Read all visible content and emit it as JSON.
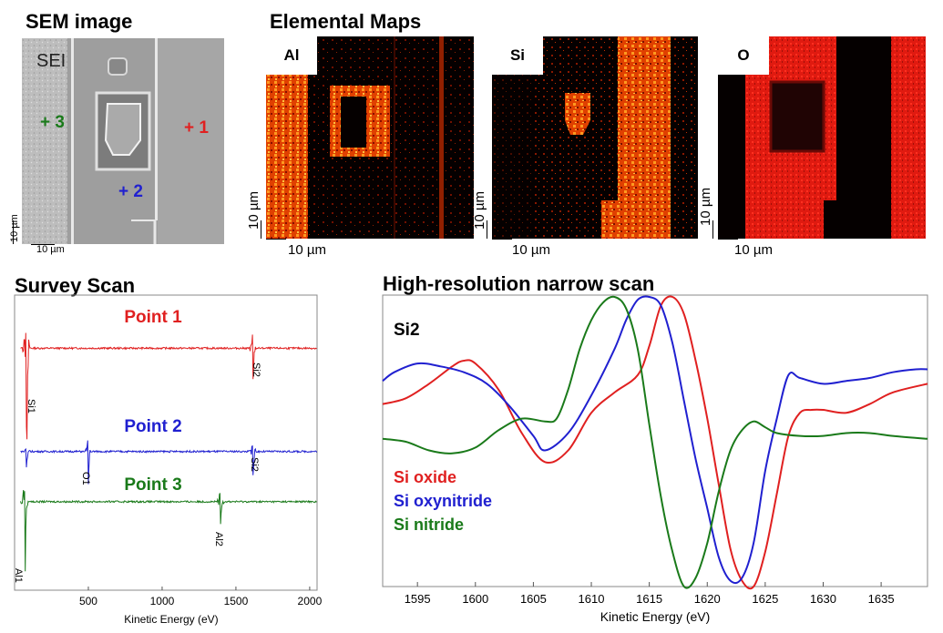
{
  "sem": {
    "title": "SEM image",
    "tag": "SEI",
    "points": [
      {
        "label": "+ 3",
        "color": "#1a7a1a"
      },
      {
        "label": "+ 2",
        "color": "#2020d0"
      },
      {
        "label": "+ 1",
        "color": "#e02020"
      }
    ],
    "scale_x": "10 µm",
    "scale_y": "10 µm"
  },
  "maps": {
    "title": "Elemental Maps",
    "panels": [
      {
        "label": "Al",
        "scale_x": "10 µm",
        "scale_y": "10 µm"
      },
      {
        "label": "Si",
        "scale_x": "10 µm",
        "scale_y": "10 µm"
      },
      {
        "label": "O",
        "scale_x": "10 µm",
        "scale_y": "10 µm"
      }
    ]
  },
  "survey": {
    "title": "Survey Scan",
    "point_labels": [
      {
        "text": "Point 1",
        "color": "#e02020"
      },
      {
        "text": "Point 2",
        "color": "#2020d0"
      },
      {
        "text": "Point 3",
        "color": "#1a7a1a"
      }
    ],
    "peak_labels": [
      "Si1",
      "Si2",
      "O1",
      "Si2",
      "Al2",
      "Al1"
    ]
  },
  "narrow": {
    "title": "High-resolution narrow scan",
    "panel_label": "Si2",
    "legend": [
      {
        "text": "Si oxide",
        "color": "#e02020"
      },
      {
        "text": "Si oxynitride",
        "color": "#2020d0"
      },
      {
        "text": "Si nitride",
        "color": "#1a7a1a"
      }
    ]
  },
  "chart_data": [
    {
      "type": "line",
      "title": "Survey Scan",
      "xlabel": "Kinetic Energy (eV)",
      "ylabel": "",
      "xlim": [
        0,
        2050
      ],
      "xticks": [
        500,
        1000,
        1500,
        2000
      ],
      "series": [
        {
          "name": "Point 1",
          "color": "#e02020",
          "baseline": 0.82,
          "peaks": [
            {
              "x": 80,
              "amp": -0.35,
              "label": "Si1"
            },
            {
              "x": 1615,
              "amp": -0.13,
              "label": "Si2"
            }
          ]
        },
        {
          "name": "Point 2",
          "color": "#2020d0",
          "baseline": 0.47,
          "peaks": [
            {
              "x": 80,
              "amp": -0.05,
              "label": ""
            },
            {
              "x": 500,
              "amp": -0.09,
              "label": "O1"
            },
            {
              "x": 1615,
              "amp": -0.08,
              "label": "Si2"
            }
          ]
        },
        {
          "name": "Point 3",
          "color": "#1a7a1a",
          "baseline": 0.3,
          "peaks": [
            {
              "x": 70,
              "amp": -0.25,
              "label": "Al1"
            },
            {
              "x": 1395,
              "amp": -0.08,
              "label": "Al2"
            }
          ]
        }
      ]
    },
    {
      "type": "line",
      "title": "High-resolution narrow scan",
      "xlabel": "Kinetic Energy (eV)",
      "ylabel": "",
      "xlim": [
        1592,
        1639
      ],
      "ylim": [
        0,
        1
      ],
      "xticks": [
        1595,
        1600,
        1605,
        1610,
        1615,
        1620,
        1625,
        1630,
        1635
      ],
      "series": [
        {
          "name": "Si oxide",
          "color": "#e02020",
          "x": [
            1592,
            1594,
            1596,
            1598,
            1599,
            1600,
            1602,
            1604,
            1606,
            1608,
            1610,
            1612,
            1614,
            1615,
            1616,
            1617,
            1618,
            1619,
            1620,
            1621,
            1622,
            1623,
            1624,
            1625,
            1626,
            1627,
            1628,
            1629,
            1630,
            1632,
            1634,
            1636,
            1639
          ],
          "y": [
            0.63,
            0.65,
            0.7,
            0.76,
            0.78,
            0.77,
            0.68,
            0.53,
            0.43,
            0.47,
            0.6,
            0.67,
            0.73,
            0.83,
            0.97,
            1.0,
            0.94,
            0.78,
            0.58,
            0.35,
            0.13,
            0.02,
            0.0,
            0.12,
            0.32,
            0.52,
            0.6,
            0.61,
            0.61,
            0.6,
            0.63,
            0.67,
            0.7
          ]
        },
        {
          "name": "Si oxynitride",
          "color": "#2020d0",
          "x": [
            1592,
            1593,
            1595,
            1597,
            1599,
            1601,
            1603,
            1605,
            1606,
            1608,
            1610,
            1612,
            1613,
            1614,
            1615,
            1616,
            1617,
            1618,
            1619,
            1620,
            1621,
            1622,
            1623,
            1624,
            1625,
            1626,
            1627,
            1628,
            1630,
            1632,
            1634,
            1636,
            1638,
            1639
          ],
          "y": [
            0.71,
            0.74,
            0.77,
            0.76,
            0.74,
            0.7,
            0.62,
            0.52,
            0.47,
            0.53,
            0.66,
            0.82,
            0.92,
            0.99,
            1.0,
            0.97,
            0.84,
            0.64,
            0.44,
            0.27,
            0.1,
            0.02,
            0.03,
            0.15,
            0.4,
            0.58,
            0.73,
            0.72,
            0.7,
            0.71,
            0.72,
            0.74,
            0.75,
            0.75
          ]
        },
        {
          "name": "Si nitride",
          "color": "#1a7a1a",
          "x": [
            1592,
            1594,
            1596,
            1598,
            1600,
            1602,
            1604,
            1606,
            1607,
            1608,
            1609,
            1610,
            1611,
            1612,
            1613,
            1614,
            1615,
            1616,
            1617,
            1618,
            1619,
            1620,
            1621,
            1622,
            1623,
            1624,
            1625,
            1626,
            1628,
            1630,
            1632,
            1634,
            1636,
            1639
          ],
          "y": [
            0.51,
            0.5,
            0.47,
            0.46,
            0.48,
            0.54,
            0.58,
            0.57,
            0.58,
            0.68,
            0.82,
            0.92,
            0.98,
            1.0,
            0.96,
            0.82,
            0.56,
            0.31,
            0.12,
            0.0,
            0.03,
            0.15,
            0.33,
            0.47,
            0.54,
            0.57,
            0.55,
            0.53,
            0.52,
            0.52,
            0.53,
            0.53,
            0.52,
            0.51
          ]
        }
      ]
    }
  ]
}
